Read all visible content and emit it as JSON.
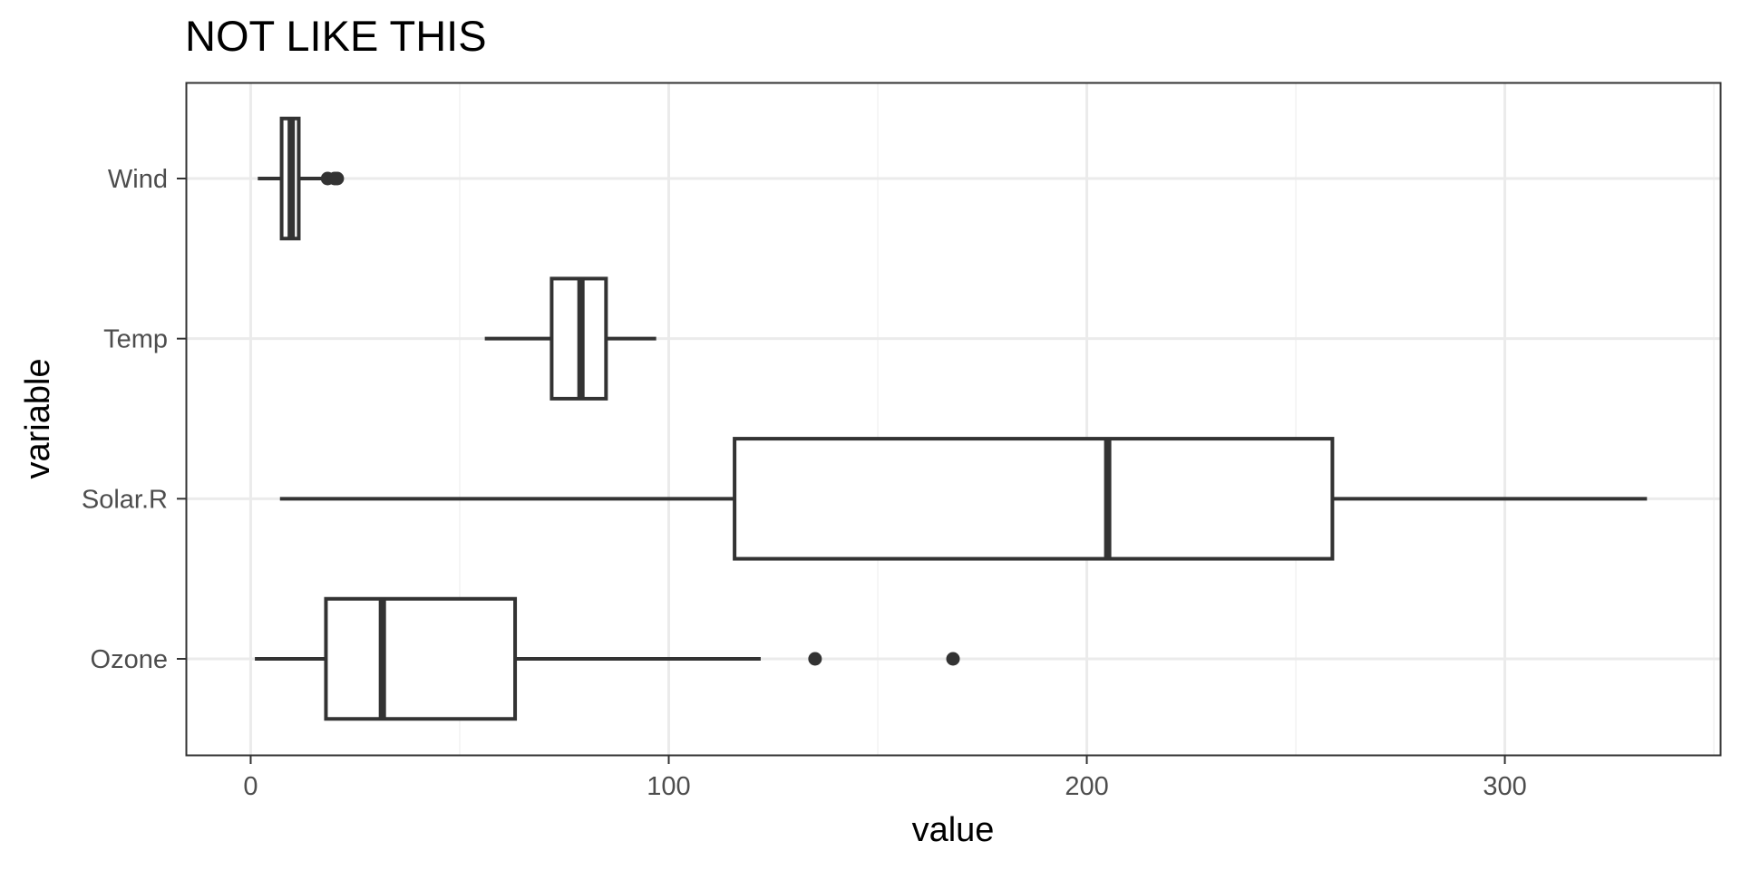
{
  "chart_data": {
    "type": "boxplot",
    "orientation": "horizontal",
    "title": "NOT LIKE THIS",
    "xlabel": "value",
    "ylabel": "variable",
    "xlim": [
      -15.5,
      351.5
    ],
    "x_ticks": [
      0,
      100,
      200,
      300
    ],
    "x_tick_labels": [
      "0",
      "100",
      "200",
      "300"
    ],
    "categories": [
      "Ozone",
      "Solar.R",
      "Temp",
      "Wind"
    ],
    "grid": true,
    "theme": "bw",
    "colors": {
      "box_stroke": "#333333",
      "box_fill": "#ffffff",
      "grid_major": "#ebebeb",
      "grid_minor": "#f2f2f2",
      "panel_border": "#333333",
      "tick_text": "#4d4d4d"
    },
    "boxes": [
      {
        "category": "Ozone",
        "whisker_low": 1,
        "q1": 18,
        "median": 31.5,
        "q3": 63.25,
        "whisker_high": 122,
        "outliers": [
          135,
          168
        ]
      },
      {
        "category": "Solar.R",
        "whisker_low": 7,
        "q1": 115.75,
        "median": 205,
        "q3": 258.75,
        "whisker_high": 334,
        "outliers": []
      },
      {
        "category": "Temp",
        "whisker_low": 56,
        "q1": 72,
        "median": 79,
        "q3": 85,
        "whisker_high": 97,
        "outliers": []
      },
      {
        "category": "Wind",
        "whisker_low": 1.7,
        "q1": 7.4,
        "median": 9.7,
        "q3": 11.5,
        "whisker_high": 17.5,
        "outliers": [
          18.4,
          20.1,
          20.7
        ]
      }
    ]
  }
}
